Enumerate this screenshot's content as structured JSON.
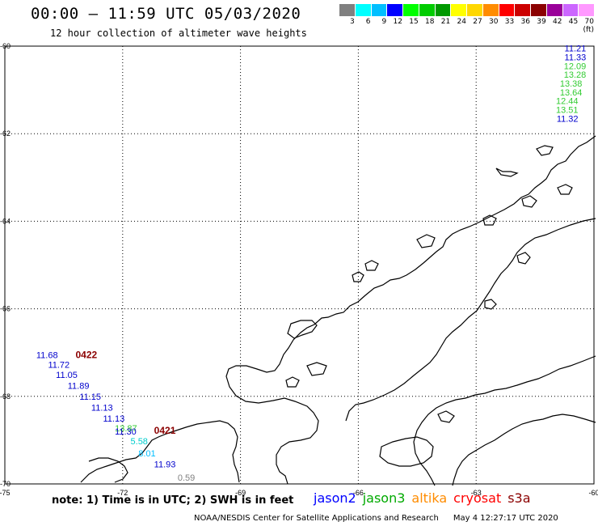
{
  "header": {
    "title": "00:00 – 11:59 UTC 05/03/2020",
    "subtitle": "12 hour collection of altimeter wave heights"
  },
  "legend": {
    "unit_label": "(ft)",
    "bins": [
      {
        "label": "3",
        "color": "#808080"
      },
      {
        "label": "6",
        "color": "#00ffff"
      },
      {
        "label": "9",
        "color": "#00bfff"
      },
      {
        "label": "12",
        "color": "#0000ff"
      },
      {
        "label": "15",
        "color": "#00ff00"
      },
      {
        "label": "18",
        "color": "#00cc00"
      },
      {
        "label": "21",
        "color": "#009900"
      },
      {
        "label": "24",
        "color": "#ffff00"
      },
      {
        "label": "27",
        "color": "#ffd700"
      },
      {
        "label": "30",
        "color": "#ff8c00"
      },
      {
        "label": "33",
        "color": "#ff0000"
      },
      {
        "label": "36",
        "color": "#cc0000"
      },
      {
        "label": "39",
        "color": "#8b0000"
      },
      {
        "label": "42",
        "color": "#990099"
      },
      {
        "label": "45",
        "color": "#cc66ff"
      },
      {
        "label": "70",
        "color": "#ff99ff"
      }
    ]
  },
  "axes": {
    "lon_ticks": [
      "-75",
      "-72",
      "-69",
      "-66",
      "-63",
      "-60"
    ],
    "lat_ticks": [
      "-60",
      "-62",
      "-64",
      "-66",
      "-68",
      "-70"
    ]
  },
  "observations": [
    {
      "text": "11.21",
      "color": "#0000cc",
      "lon": -60.2,
      "lat": -60.05
    },
    {
      "text": "11.33",
      "color": "#0000cc",
      "lon": -60.2,
      "lat": -60.25
    },
    {
      "text": "12.09",
      "color": "#33cc33",
      "lon": -60.2,
      "lat": -60.45
    },
    {
      "text": "13.28",
      "color": "#33cc33",
      "lon": -60.2,
      "lat": -60.65
    },
    {
      "text": "13.38",
      "color": "#33cc33",
      "lon": -60.3,
      "lat": -60.85
    },
    {
      "text": "13.64",
      "color": "#33cc33",
      "lon": -60.3,
      "lat": -61.05
    },
    {
      "text": "12.44",
      "color": "#33cc33",
      "lon": -60.4,
      "lat": -61.25
    },
    {
      "text": "13.51",
      "color": "#33cc33",
      "lon": -60.4,
      "lat": -61.45
    },
    {
      "text": "11.32",
      "color": "#0000cc",
      "lon": -60.4,
      "lat": -61.65
    },
    {
      "text": "11.68",
      "color": "#0000cc",
      "lon": -74.2,
      "lat": -67.05
    },
    {
      "text": "0422",
      "color": "#8b0000",
      "lon": -73.2,
      "lat": -67.05,
      "bold": true
    },
    {
      "text": "11.72",
      "color": "#0000cc",
      "lon": -73.9,
      "lat": -67.27
    },
    {
      "text": "11.05",
      "color": "#0000cc",
      "lon": -73.7,
      "lat": -67.5
    },
    {
      "text": "11.89",
      "color": "#0000cc",
      "lon": -73.4,
      "lat": -67.75
    },
    {
      "text": "11.15",
      "color": "#0000cc",
      "lon": -73.1,
      "lat": -68.0
    },
    {
      "text": "11.13",
      "color": "#0000cc",
      "lon": -72.8,
      "lat": -68.25
    },
    {
      "text": "11.13",
      "color": "#0000cc",
      "lon": -72.5,
      "lat": -68.5
    },
    {
      "text": "13.87",
      "color": "#33cc33",
      "lon": -72.2,
      "lat": -68.72
    },
    {
      "text": "11.30",
      "color": "#0000cc",
      "lon": -72.2,
      "lat": -68.8
    },
    {
      "text": "0421",
      "color": "#8b0000",
      "lon": -71.2,
      "lat": -68.78,
      "bold": true
    },
    {
      "text": "5.58",
      "color": "#00cccc",
      "lon": -71.8,
      "lat": -69.02
    },
    {
      "text": "8.01",
      "color": "#00bfff",
      "lon": -71.6,
      "lat": -69.3
    },
    {
      "text": "11.93",
      "color": "#0000cc",
      "lon": -71.2,
      "lat": -69.55
    },
    {
      "text": "0.59",
      "color": "#808080",
      "lon": -70.6,
      "lat": -69.85
    }
  ],
  "footer": {
    "note": "note:  1) Time is in UTC;  2) SWH is in feet",
    "satellites": [
      {
        "name": "jason2",
        "color": "#0000ff"
      },
      {
        "name": "jason3",
        "color": "#00aa00"
      },
      {
        "name": "altika",
        "color": "#ff8c00"
      },
      {
        "name": "cryosat",
        "color": "#ff0000"
      },
      {
        "name": "s3a",
        "color": "#8b0000"
      }
    ],
    "credit": "NOAA/NESDIS Center for Satellite Applications and Research",
    "timestamp": "May  4 12:27:17 UTC 2020"
  }
}
